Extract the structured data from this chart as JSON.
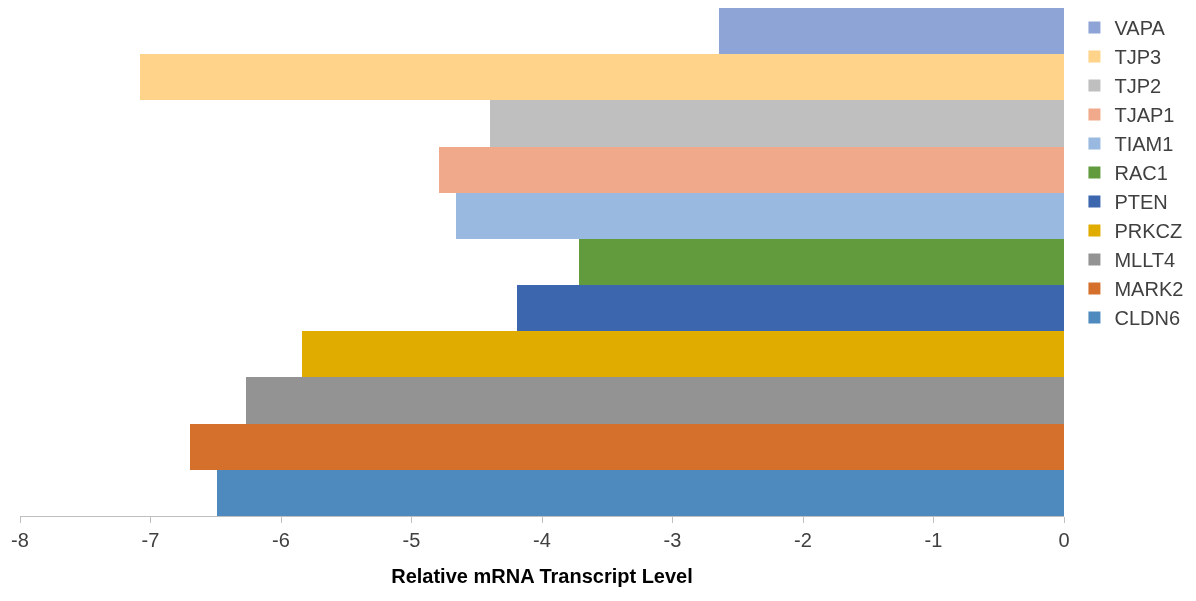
{
  "chart_data": {
    "type": "bar",
    "orientation": "horizontal",
    "xlabel": "Relative mRNA Transcript Level",
    "categories": [
      null
    ],
    "series": [
      {
        "name": "VAPA",
        "color": "#8fa4d6",
        "values": [
          -2.64
        ]
      },
      {
        "name": "TJP3",
        "color": "#ffd38a",
        "values": [
          -7.08
        ]
      },
      {
        "name": "TJP2",
        "color": "#bfbfbf",
        "values": [
          -4.4
        ]
      },
      {
        "name": "TJAP1",
        "color": "#f0a98a",
        "values": [
          -4.79
        ]
      },
      {
        "name": "TIAM1",
        "color": "#9ab9e0",
        "values": [
          -4.66
        ]
      },
      {
        "name": "RAC1",
        "color": "#629b3e",
        "values": [
          -3.72
        ]
      },
      {
        "name": "PTEN",
        "color": "#3c66ae",
        "values": [
          -4.19
        ]
      },
      {
        "name": "PRKCZ",
        "color": "#e0ac00",
        "values": [
          -5.84
        ]
      },
      {
        "name": "MLLT4",
        "color": "#939393",
        "values": [
          -6.27
        ]
      },
      {
        "name": "MARK2",
        "color": "#d4702c",
        "values": [
          -6.7
        ]
      },
      {
        "name": "CLDN6",
        "color": "#4e8abd",
        "values": [
          -6.49
        ]
      }
    ],
    "xlim": [
      -8,
      0
    ],
    "xticks": [
      -8,
      -7,
      -6,
      -5,
      -4,
      -3,
      -2,
      -1,
      0
    ],
    "legend": "right",
    "tick_labels": "x"
  }
}
